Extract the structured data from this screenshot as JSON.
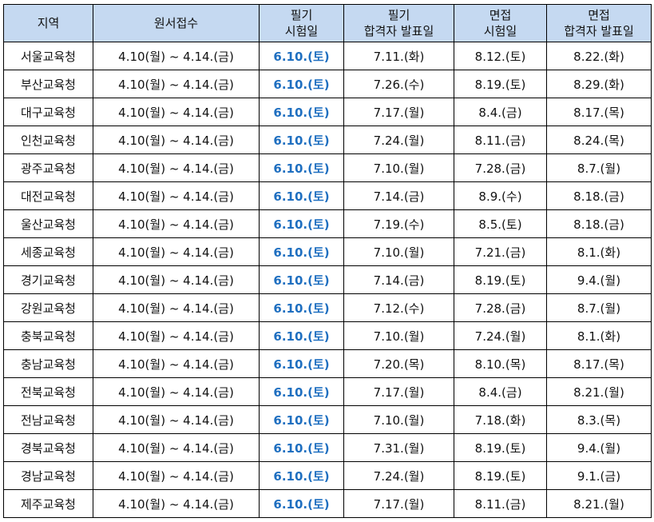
{
  "headers": [
    {
      "line1": "지역",
      "line2": ""
    },
    {
      "line1": "원서접수",
      "line2": ""
    },
    {
      "line1": "필기",
      "line2": "시험일"
    },
    {
      "line1": "필기",
      "line2": "합격자 발표일"
    },
    {
      "line1": "면접",
      "line2": "시험일"
    },
    {
      "line1": "면접",
      "line2": "합격자 발표일"
    }
  ],
  "rows": [
    {
      "region": "서울교육청",
      "application": "4.10(월) ~ 4.14.(금)",
      "written_exam": "6.10.(토)",
      "written_result": "7.11.(화)",
      "interview": "8.12.(토)",
      "final_result": "8.22.(화)"
    },
    {
      "region": "부산교육청",
      "application": "4.10(월) ~ 4.14.(금)",
      "written_exam": "6.10.(토)",
      "written_result": "7.26.(수)",
      "interview": "8.19.(토)",
      "final_result": "8.29.(화)"
    },
    {
      "region": "대구교육청",
      "application": "4.10(월) ~ 4.14.(금)",
      "written_exam": "6.10.(토)",
      "written_result": "7.17.(월)",
      "interview": "8.4.(금)",
      "final_result": "8.17.(목)"
    },
    {
      "region": "인천교육청",
      "application": "4.10(월) ~ 4.14.(금)",
      "written_exam": "6.10.(토)",
      "written_result": "7.24.(월)",
      "interview": "8.11.(금)",
      "final_result": "8.24.(목)"
    },
    {
      "region": "광주교육청",
      "application": "4.10(월) ~ 4.14.(금)",
      "written_exam": "6.10.(토)",
      "written_result": "7.10.(월)",
      "interview": "7.28.(금)",
      "final_result": "8.7.(월)"
    },
    {
      "region": "대전교육청",
      "application": "4.10(월) ~ 4.14.(금)",
      "written_exam": "6.10.(토)",
      "written_result": "7.14.(금)",
      "interview": "8.9.(수)",
      "final_result": "8.18.(금)"
    },
    {
      "region": "울산교육청",
      "application": "4.10(월) ~ 4.14.(금)",
      "written_exam": "6.10.(토)",
      "written_result": "7.19.(수)",
      "interview": "8.5.(토)",
      "final_result": "8.18.(금)"
    },
    {
      "region": "세종교육청",
      "application": "4.10(월) ~ 4.14.(금)",
      "written_exam": "6.10.(토)",
      "written_result": "7.10.(월)",
      "interview": "7.21.(금)",
      "final_result": "8.1.(화)"
    },
    {
      "region": "경기교육청",
      "application": "4.10(월) ~ 4.14.(금)",
      "written_exam": "6.10.(토)",
      "written_result": "7.14.(금)",
      "interview": "8.19.(토)",
      "final_result": "9.4.(월)"
    },
    {
      "region": "강원교육청",
      "application": "4.10(월) ~ 4.14.(금)",
      "written_exam": "6.10.(토)",
      "written_result": "7.12.(수)",
      "interview": "7.28.(금)",
      "final_result": "8.7.(월)"
    },
    {
      "region": "충북교육청",
      "application": "4.10(월) ~ 4.14.(금)",
      "written_exam": "6.10.(토)",
      "written_result": "7.10.(월)",
      "interview": "7.24.(월)",
      "final_result": "8.1.(화)"
    },
    {
      "region": "충남교육청",
      "application": "4.10(월) ~ 4.14.(금)",
      "written_exam": "6.10.(토)",
      "written_result": "7.20.(목)",
      "interview": "8.10.(목)",
      "final_result": "8.17.(목)"
    },
    {
      "region": "전북교육청",
      "application": "4.10(월) ~ 4.14.(금)",
      "written_exam": "6.10.(토)",
      "written_result": "7.17.(월)",
      "interview": "8.4.(금)",
      "final_result": "8.21.(월)"
    },
    {
      "region": "전남교육청",
      "application": "4.10(월) ~ 4.14.(금)",
      "written_exam": "6.10.(토)",
      "written_result": "7.10.(월)",
      "interview": "7.18.(화)",
      "final_result": "8.3.(목)"
    },
    {
      "region": "경북교육청",
      "application": "4.10(월) ~ 4.14.(금)",
      "written_exam": "6.10.(토)",
      "written_result": "7.31.(월)",
      "interview": "8.19.(토)",
      "final_result": "9.4.(월)"
    },
    {
      "region": "경남교육청",
      "application": "4.10(월) ~ 4.14.(금)",
      "written_exam": "6.10.(토)",
      "written_result": "7.24.(월)",
      "interview": "8.19.(토)",
      "final_result": "9.1.(금)"
    },
    {
      "region": "제주교육청",
      "application": "4.10(월) ~ 4.14.(금)",
      "written_exam": "6.10.(토)",
      "written_result": "7.17.(월)",
      "interview": "8.11.(금)",
      "final_result": "8.21.(월)"
    }
  ],
  "colors": {
    "header_bg": "#c5d9f1",
    "highlight_text": "#1f6fc0",
    "border": "#000000"
  }
}
